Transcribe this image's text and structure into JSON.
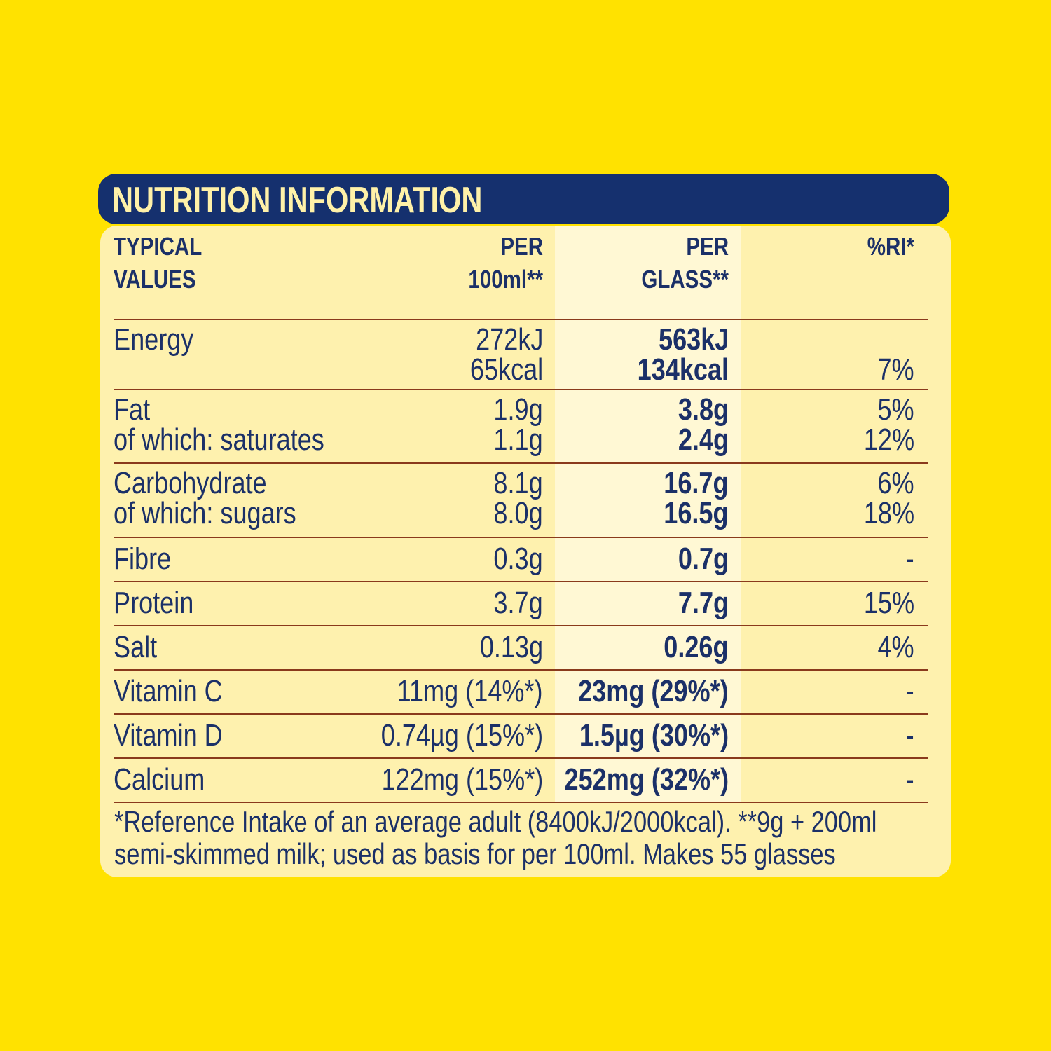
{
  "title": "NUTRITION INFORMATION",
  "headers": {
    "typical_values": [
      "TYPICAL",
      "VALUES"
    ],
    "per_100ml": [
      "PER",
      "100ml**"
    ],
    "per_glass": [
      "PER",
      "GLASS**"
    ],
    "ri": [
      "%RI*",
      ""
    ]
  },
  "rows": [
    {
      "label": [
        "Energy",
        ""
      ],
      "per_100ml": [
        "272kJ",
        "65kcal"
      ],
      "per_glass": [
        "563kJ",
        "134kcal"
      ],
      "ri": [
        "",
        "7%"
      ]
    },
    {
      "label": [
        "Fat",
        "of which: saturates"
      ],
      "per_100ml": [
        "1.9g",
        "1.1g"
      ],
      "per_glass": [
        "3.8g",
        "2.4g"
      ],
      "ri": [
        "5%",
        "12%"
      ]
    },
    {
      "label": [
        "Carbohydrate",
        "of which: sugars"
      ],
      "per_100ml": [
        "8.1g",
        "8.0g"
      ],
      "per_glass": [
        "16.7g",
        "16.5g"
      ],
      "ri": [
        "6%",
        "18%"
      ]
    },
    {
      "label": [
        "Fibre"
      ],
      "per_100ml": [
        "0.3g"
      ],
      "per_glass": [
        "0.7g"
      ],
      "ri": [
        "-"
      ]
    },
    {
      "label": [
        "Protein"
      ],
      "per_100ml": [
        "3.7g"
      ],
      "per_glass": [
        "7.7g"
      ],
      "ri": [
        "15%"
      ]
    },
    {
      "label": [
        "Salt"
      ],
      "per_100ml": [
        "0.13g"
      ],
      "per_glass": [
        "0.26g"
      ],
      "ri": [
        "4%"
      ]
    },
    {
      "label": [
        "Vitamin C"
      ],
      "per_100ml": [
        "11mg (14%*)"
      ],
      "per_glass": [
        "23mg (29%*)"
      ],
      "ri": [
        "-"
      ]
    },
    {
      "label": [
        "Vitamin D"
      ],
      "per_100ml": [
        "0.74µg (15%*)"
      ],
      "per_glass": [
        "1.5µg (30%*)"
      ],
      "ri": [
        "-"
      ]
    },
    {
      "label": [
        "Calcium"
      ],
      "per_100ml": [
        "122mg (15%*)"
      ],
      "per_glass": [
        "252mg (32%*)"
      ],
      "ri": [
        "-"
      ]
    }
  ],
  "footnote": [
    "*Reference Intake of an average adult (8400kJ/2000kcal). **9g + 200ml",
    "semi-skimmed milk; used as basis for per 100ml. Makes 55 glasses"
  ],
  "colors": {
    "background": "#FFE200",
    "navy": "#15306E",
    "panel": "#FEF1AE",
    "glass_column": "#FFF8D4",
    "rule": "#8A3A1C"
  }
}
